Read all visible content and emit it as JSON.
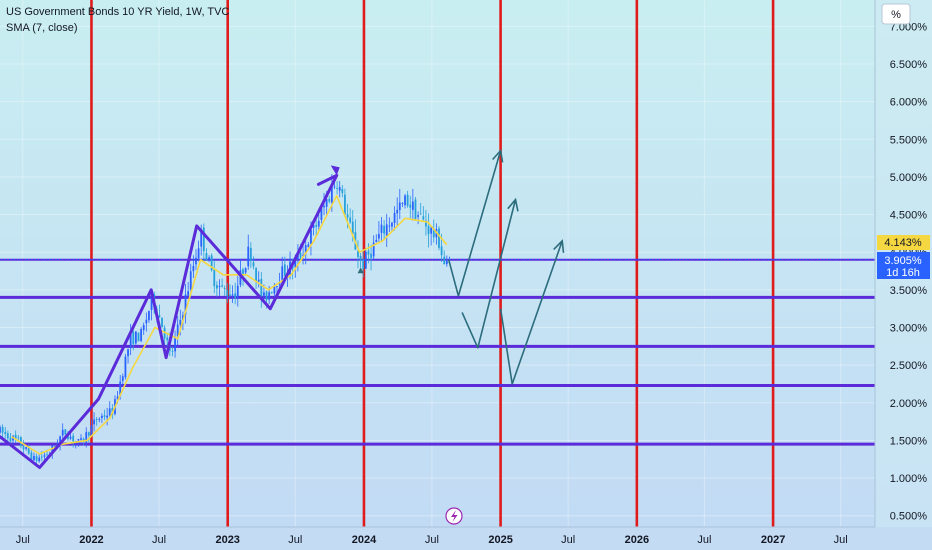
{
  "header": {
    "title": "US Government Bonds 10 YR Yield, 1W, TVC",
    "indicator": "SMA (7, close)"
  },
  "price_axis": {
    "unit_label": "%",
    "current_price": "3.905%",
    "countdown": "1d 16h",
    "sma_value": "4.143%"
  },
  "icons": {
    "lightning": "lightning-icon"
  },
  "chart_data": {
    "type": "candlestick",
    "title": "US Government Bonds 10 YR Yield, 1W, TVC",
    "ylabel": "%",
    "ylim": [
      0.35,
      7.35
    ],
    "xlim": [
      "2021-05-01",
      "2027-10-01"
    ],
    "y_ticks": [
      "7.000%",
      "6.500%",
      "6.000%",
      "5.500%",
      "5.000%",
      "4.500%",
      "4.000%",
      "3.500%",
      "3.000%",
      "2.500%",
      "2.000%",
      "1.500%",
      "1.000%",
      "0.500%"
    ],
    "x_ticks": [
      {
        "label": "Jul",
        "date": "2021-07-01"
      },
      {
        "label": "2022",
        "date": "2022-01-01"
      },
      {
        "label": "Jul",
        "date": "2022-07-01"
      },
      {
        "label": "2023",
        "date": "2023-01-01"
      },
      {
        "label": "Jul",
        "date": "2023-07-01"
      },
      {
        "label": "2024",
        "date": "2024-01-01"
      },
      {
        "label": "Jul",
        "date": "2024-07-01"
      },
      {
        "label": "2025",
        "date": "2025-01-01"
      },
      {
        "label": "Jul",
        "date": "2025-07-01"
      },
      {
        "label": "2026",
        "date": "2026-01-01"
      },
      {
        "label": "Jul",
        "date": "2026-07-01"
      },
      {
        "label": "2027",
        "date": "2027-01-01"
      },
      {
        "label": "Jul",
        "date": "2027-07-01"
      }
    ],
    "price_path": [
      [
        "2021-05-01",
        1.62
      ],
      [
        "2021-06-20",
        1.48
      ],
      [
        "2021-08-01",
        1.24
      ],
      [
        "2021-09-10",
        1.33
      ],
      [
        "2021-10-20",
        1.62
      ],
      [
        "2021-12-01",
        1.45
      ],
      [
        "2022-01-15",
        1.78
      ],
      [
        "2022-03-01",
        1.9
      ],
      [
        "2022-04-15",
        2.85
      ],
      [
        "2022-05-15",
        2.9
      ],
      [
        "2022-06-14",
        3.4
      ],
      [
        "2022-07-15",
        2.95
      ],
      [
        "2022-08-01",
        2.6
      ],
      [
        "2022-09-01",
        3.2
      ],
      [
        "2022-10-21",
        4.25
      ],
      [
        "2022-11-20",
        3.7
      ],
      [
        "2022-12-15",
        3.5
      ],
      [
        "2023-01-20",
        3.45
      ],
      [
        "2023-03-01",
        4.05
      ],
      [
        "2023-04-05",
        3.35
      ],
      [
        "2023-05-20",
        3.7
      ],
      [
        "2023-07-01",
        3.85
      ],
      [
        "2023-08-20",
        4.3
      ],
      [
        "2023-10-20",
        4.98
      ],
      [
        "2023-12-01",
        4.2
      ],
      [
        "2023-12-27",
        3.82
      ],
      [
        "2024-02-15",
        4.25
      ],
      [
        "2024-04-25",
        4.7
      ],
      [
        "2024-06-01",
        4.45
      ],
      [
        "2024-07-20",
        4.15
      ],
      [
        "2024-08-05",
        3.8
      ],
      [
        "2024-08-20",
        3.85
      ]
    ],
    "sma": {
      "name": "SMA (7, close)",
      "color": "#f5d742",
      "points": [
        [
          "2021-06-01",
          1.55
        ],
        [
          "2021-08-15",
          1.32
        ],
        [
          "2021-10-15",
          1.45
        ],
        [
          "2021-12-20",
          1.5
        ],
        [
          "2022-02-20",
          1.8
        ],
        [
          "2022-04-20",
          2.45
        ],
        [
          "2022-06-20",
          3.0
        ],
        [
          "2022-08-20",
          2.85
        ],
        [
          "2022-10-20",
          3.9
        ],
        [
          "2022-12-20",
          3.7
        ],
        [
          "2023-02-20",
          3.7
        ],
        [
          "2023-04-20",
          3.5
        ],
        [
          "2023-06-20",
          3.7
        ],
        [
          "2023-08-20",
          4.15
        ],
        [
          "2023-10-20",
          4.75
        ],
        [
          "2023-12-20",
          4.0
        ],
        [
          "2024-02-20",
          4.15
        ],
        [
          "2024-04-20",
          4.45
        ],
        [
          "2024-06-20",
          4.4
        ],
        [
          "2024-08-10",
          4.1
        ]
      ]
    },
    "horizontal_levels": [
      3.9,
      3.4,
      2.75,
      2.23,
      1.45
    ],
    "vertical_lines": [
      "2022-01-01",
      "2023-01-01",
      "2024-01-01",
      "2025-01-01",
      "2026-01-01",
      "2027-01-01"
    ],
    "zigzag": [
      [
        "2021-05-01",
        1.55
      ],
      [
        "2021-08-15",
        1.14
      ],
      [
        "2022-01-20",
        2.05
      ],
      [
        "2022-06-10",
        3.5
      ],
      [
        "2022-07-20",
        2.6
      ],
      [
        "2022-10-10",
        4.35
      ],
      [
        "2023-04-25",
        3.25
      ],
      [
        "2023-10-20",
        5.02
      ],
      [
        "2023-09-01",
        4.9
      ]
    ],
    "projections": [
      {
        "points": [
          [
            "2024-08-15",
            3.9
          ],
          [
            "2024-09-10",
            3.42
          ],
          [
            "2025-01-01",
            5.35
          ]
        ],
        "arrow": true
      },
      {
        "points": [
          [
            "2024-09-20",
            3.2
          ],
          [
            "2024-11-01",
            2.73
          ],
          [
            "2025-02-10",
            4.7
          ]
        ],
        "arrow": true
      },
      {
        "points": [
          [
            "2025-01-01",
            3.25
          ],
          [
            "2025-02-01",
            2.25
          ],
          [
            "2025-06-15",
            4.15
          ]
        ],
        "arrow": true
      }
    ],
    "colors": {
      "candle_up": "#2962ff",
      "candle_down": "#26a0da",
      "levels": "#5b2bd9",
      "verticals": "#e01b1b",
      "zigzag": "#5b2bd9",
      "projections": "#2b6c7d",
      "price_label": "#2962ff",
      "sma_label": "#f5d742"
    }
  }
}
